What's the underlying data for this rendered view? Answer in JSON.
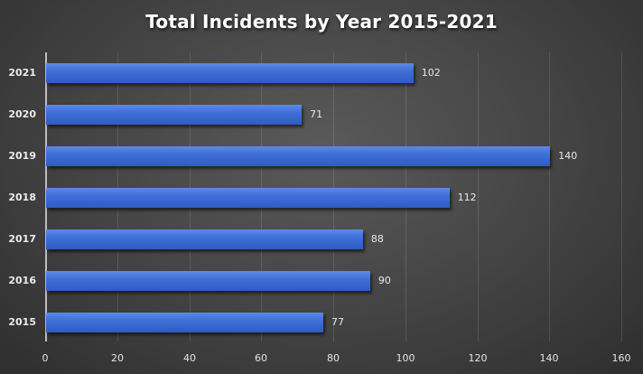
{
  "chart_data": {
    "type": "bar",
    "orientation": "horizontal",
    "title": "Total Incidents by Year 2015-2021",
    "xlabel": "",
    "ylabel": "",
    "categories": [
      "2021",
      "2020",
      "2019",
      "2018",
      "2017",
      "2016",
      "2015"
    ],
    "values": [
      102,
      71,
      140,
      112,
      88,
      90,
      77
    ],
    "xlim": [
      0,
      160
    ],
    "x_ticks": [
      "0",
      "20",
      "40",
      "60",
      "80",
      "100",
      "120",
      "140",
      "160"
    ],
    "grid": true,
    "legend": null,
    "data_labels": true,
    "bar_color": "#3f6fd8",
    "background_color": "#474747"
  }
}
